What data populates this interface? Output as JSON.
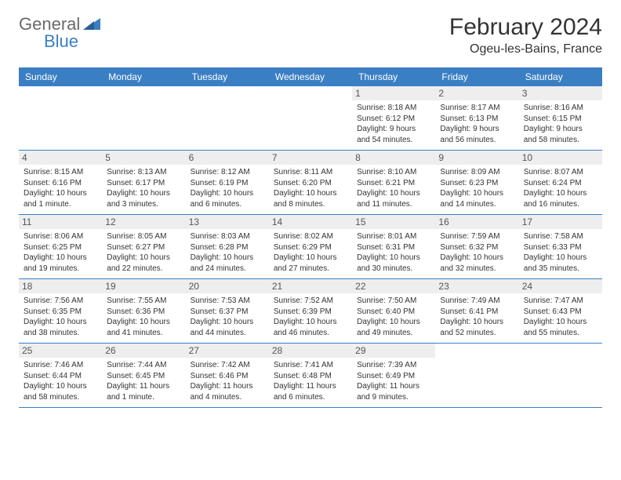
{
  "logo": {
    "text1": "General",
    "text2": "Blue",
    "icon_color": "#3a7fc4",
    "text1_color": "#6a6a6a"
  },
  "title": "February 2024",
  "location": "Ogeu-les-Bains, France",
  "header_bg": "#3a7fc4",
  "header_fg": "#ffffff",
  "daynum_bg": "#eeeeee",
  "rule_color": "#3a7fc4",
  "day_names": [
    "Sunday",
    "Monday",
    "Tuesday",
    "Wednesday",
    "Thursday",
    "Friday",
    "Saturday"
  ],
  "weeks": [
    [
      null,
      null,
      null,
      null,
      {
        "n": "1",
        "sunrise": "Sunrise: 8:18 AM",
        "sunset": "Sunset: 6:12 PM",
        "daylight": "Daylight: 9 hours and 54 minutes."
      },
      {
        "n": "2",
        "sunrise": "Sunrise: 8:17 AM",
        "sunset": "Sunset: 6:13 PM",
        "daylight": "Daylight: 9 hours and 56 minutes."
      },
      {
        "n": "3",
        "sunrise": "Sunrise: 8:16 AM",
        "sunset": "Sunset: 6:15 PM",
        "daylight": "Daylight: 9 hours and 58 minutes."
      }
    ],
    [
      {
        "n": "4",
        "sunrise": "Sunrise: 8:15 AM",
        "sunset": "Sunset: 6:16 PM",
        "daylight": "Daylight: 10 hours and 1 minute."
      },
      {
        "n": "5",
        "sunrise": "Sunrise: 8:13 AM",
        "sunset": "Sunset: 6:17 PM",
        "daylight": "Daylight: 10 hours and 3 minutes."
      },
      {
        "n": "6",
        "sunrise": "Sunrise: 8:12 AM",
        "sunset": "Sunset: 6:19 PM",
        "daylight": "Daylight: 10 hours and 6 minutes."
      },
      {
        "n": "7",
        "sunrise": "Sunrise: 8:11 AM",
        "sunset": "Sunset: 6:20 PM",
        "daylight": "Daylight: 10 hours and 8 minutes."
      },
      {
        "n": "8",
        "sunrise": "Sunrise: 8:10 AM",
        "sunset": "Sunset: 6:21 PM",
        "daylight": "Daylight: 10 hours and 11 minutes."
      },
      {
        "n": "9",
        "sunrise": "Sunrise: 8:09 AM",
        "sunset": "Sunset: 6:23 PM",
        "daylight": "Daylight: 10 hours and 14 minutes."
      },
      {
        "n": "10",
        "sunrise": "Sunrise: 8:07 AM",
        "sunset": "Sunset: 6:24 PM",
        "daylight": "Daylight: 10 hours and 16 minutes."
      }
    ],
    [
      {
        "n": "11",
        "sunrise": "Sunrise: 8:06 AM",
        "sunset": "Sunset: 6:25 PM",
        "daylight": "Daylight: 10 hours and 19 minutes."
      },
      {
        "n": "12",
        "sunrise": "Sunrise: 8:05 AM",
        "sunset": "Sunset: 6:27 PM",
        "daylight": "Daylight: 10 hours and 22 minutes."
      },
      {
        "n": "13",
        "sunrise": "Sunrise: 8:03 AM",
        "sunset": "Sunset: 6:28 PM",
        "daylight": "Daylight: 10 hours and 24 minutes."
      },
      {
        "n": "14",
        "sunrise": "Sunrise: 8:02 AM",
        "sunset": "Sunset: 6:29 PM",
        "daylight": "Daylight: 10 hours and 27 minutes."
      },
      {
        "n": "15",
        "sunrise": "Sunrise: 8:01 AM",
        "sunset": "Sunset: 6:31 PM",
        "daylight": "Daylight: 10 hours and 30 minutes."
      },
      {
        "n": "16",
        "sunrise": "Sunrise: 7:59 AM",
        "sunset": "Sunset: 6:32 PM",
        "daylight": "Daylight: 10 hours and 32 minutes."
      },
      {
        "n": "17",
        "sunrise": "Sunrise: 7:58 AM",
        "sunset": "Sunset: 6:33 PM",
        "daylight": "Daylight: 10 hours and 35 minutes."
      }
    ],
    [
      {
        "n": "18",
        "sunrise": "Sunrise: 7:56 AM",
        "sunset": "Sunset: 6:35 PM",
        "daylight": "Daylight: 10 hours and 38 minutes."
      },
      {
        "n": "19",
        "sunrise": "Sunrise: 7:55 AM",
        "sunset": "Sunset: 6:36 PM",
        "daylight": "Daylight: 10 hours and 41 minutes."
      },
      {
        "n": "20",
        "sunrise": "Sunrise: 7:53 AM",
        "sunset": "Sunset: 6:37 PM",
        "daylight": "Daylight: 10 hours and 44 minutes."
      },
      {
        "n": "21",
        "sunrise": "Sunrise: 7:52 AM",
        "sunset": "Sunset: 6:39 PM",
        "daylight": "Daylight: 10 hours and 46 minutes."
      },
      {
        "n": "22",
        "sunrise": "Sunrise: 7:50 AM",
        "sunset": "Sunset: 6:40 PM",
        "daylight": "Daylight: 10 hours and 49 minutes."
      },
      {
        "n": "23",
        "sunrise": "Sunrise: 7:49 AM",
        "sunset": "Sunset: 6:41 PM",
        "daylight": "Daylight: 10 hours and 52 minutes."
      },
      {
        "n": "24",
        "sunrise": "Sunrise: 7:47 AM",
        "sunset": "Sunset: 6:43 PM",
        "daylight": "Daylight: 10 hours and 55 minutes."
      }
    ],
    [
      {
        "n": "25",
        "sunrise": "Sunrise: 7:46 AM",
        "sunset": "Sunset: 6:44 PM",
        "daylight": "Daylight: 10 hours and 58 minutes."
      },
      {
        "n": "26",
        "sunrise": "Sunrise: 7:44 AM",
        "sunset": "Sunset: 6:45 PM",
        "daylight": "Daylight: 11 hours and 1 minute."
      },
      {
        "n": "27",
        "sunrise": "Sunrise: 7:42 AM",
        "sunset": "Sunset: 6:46 PM",
        "daylight": "Daylight: 11 hours and 4 minutes."
      },
      {
        "n": "28",
        "sunrise": "Sunrise: 7:41 AM",
        "sunset": "Sunset: 6:48 PM",
        "daylight": "Daylight: 11 hours and 6 minutes."
      },
      {
        "n": "29",
        "sunrise": "Sunrise: 7:39 AM",
        "sunset": "Sunset: 6:49 PM",
        "daylight": "Daylight: 11 hours and 9 minutes."
      },
      null,
      null
    ]
  ]
}
